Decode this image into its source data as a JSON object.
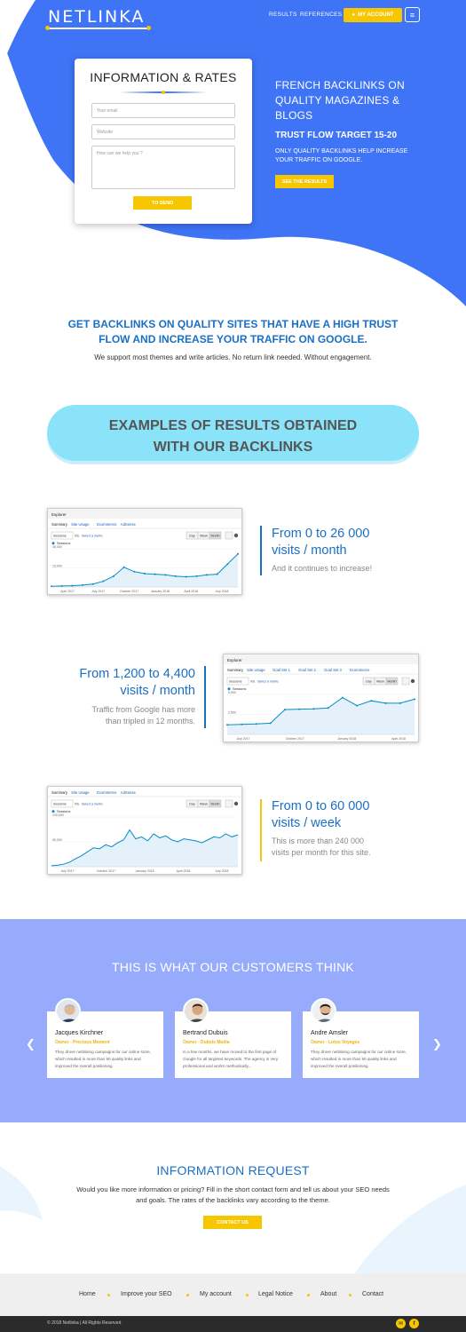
{
  "header": {
    "logo": "NETLINKA",
    "nav": [
      "RESULTS",
      "REFERENCES"
    ],
    "account_label": "MY ACCOUNT",
    "account_icon": "user-icon",
    "menu_icon": "hamburger-icon"
  },
  "form": {
    "title": "INFORMATION & RATES",
    "email_placeholder": "Your email",
    "website_placeholder": "Website",
    "message_placeholder": "How can we help you ?",
    "send_label": "TO SEND"
  },
  "hero": {
    "headline": "FRENCH BACKLINKS ON QUALITY MAGAZINES & BLOGS",
    "subheadline": "TRUST FLOW TARGET 15-20",
    "text": "ONLY QUALITY BACKLINKS HELP INCREASE YOUR TRAFFIC ON GOOGLE.",
    "cta_label": "SEE THE RESULTS"
  },
  "intro": {
    "title": "GET BACKLINKS ON QUALITY SITES THAT HAVE A HIGH TRUST FLOW AND INCREASE YOUR TRAFFIC ON GOOGLE.",
    "subtitle": "We support most themes and write articles. No return link needed. Without engagement."
  },
  "results_banner": {
    "line1": "EXAMPLES OF RESULTS OBTAINED",
    "line2": "WITH OUR BACKLINKS"
  },
  "results": [
    {
      "title_line1": "From 0 to 26 000",
      "title_line2": "visits / month",
      "subtitle": "And it continues to increase!",
      "screenshot": {
        "tab": "Explorer",
        "subtabs": [
          "Summary",
          "Site Usage",
          "Ecommerce",
          "AdSense"
        ],
        "select": "Sessions",
        "vs_label": "VS.",
        "metric_link": "Select a metric",
        "range_buttons": [
          "Day",
          "Week",
          "Month"
        ],
        "legend": "Sessions",
        "y_ticks": [
          "30,000",
          "15,000"
        ],
        "x_ticks": [
          "April 2017",
          "July 2017",
          "October 2017",
          "January 2018",
          "April 2018",
          "July 2018"
        ],
        "series": [
          0.5,
          0.8,
          1,
          1.5,
          2.3,
          4.5,
          8.5,
          15.5,
          12,
          10.5,
          10,
          9.5,
          8.5,
          8,
          8.5,
          9.5,
          10,
          18,
          26
        ]
      }
    },
    {
      "title_line1": "From 1,200 to 4,400",
      "title_line2": "visits / month",
      "subtitle_line1": "Traffic from Google has more",
      "subtitle_line2": "than tripled in 12 months.",
      "screenshot": {
        "tab": "Explorer",
        "subtabs": [
          "Summary",
          "Site Usage",
          "Goal Set 1",
          "Goal Set 2",
          "Goal Set 3",
          "Ecommerce"
        ],
        "select": "Sessions",
        "vs_label": "VS.",
        "metric_link": "Select a metric",
        "range_buttons": [
          "Day",
          "Week",
          "Month"
        ],
        "legend": "Sessions",
        "y_ticks": [
          "5,000",
          "2,500"
        ],
        "x_ticks": [
          "July 2017",
          "October 2017",
          "January 2018",
          "April 2018"
        ],
        "series": [
          1200,
          1250,
          1300,
          1400,
          3100,
          3150,
          3200,
          3300,
          4600,
          3600,
          4200,
          3900,
          3900,
          4400
        ]
      }
    },
    {
      "title_line1": "From 0 to 60 000",
      "title_line2": "visits / week",
      "subtitle_line1": "This is more than 240 000",
      "subtitle_line2": "visits per month for this site.",
      "screenshot": {
        "subtabs": [
          "Summary",
          "Site Usage",
          "Ecommerce",
          "AdSense"
        ],
        "select": "Sessions",
        "vs_label": "VS.",
        "metric_link": "Select a metric",
        "range_buttons": [
          "Day",
          "Week",
          "Month"
        ],
        "legend": "Sessions",
        "y_ticks": [
          "100,000",
          "50,000"
        ],
        "x_ticks": [
          "July 2017",
          "October 2017",
          "January 2018",
          "April 2018",
          "July 2018"
        ],
        "series": [
          2000,
          3000,
          5000,
          9000,
          16000,
          22000,
          30000,
          38000,
          36000,
          44000,
          40000,
          48000,
          54000,
          74000,
          56000,
          60000,
          52000,
          66000,
          58000,
          62000,
          54000,
          50000,
          56000,
          54000,
          52000,
          48000,
          54000,
          60000,
          58000,
          66000,
          60000,
          64000
        ]
      }
    }
  ],
  "testimonials": {
    "title": "THIS IS WHAT OUR CUSTOMERS THINK",
    "prev_icon": "chevron-left-icon",
    "next_icon": "chevron-right-icon",
    "items": [
      {
        "name": "Jacques Kirchner",
        "role": "Owner - Precious Moment",
        "text": "They drove netlinking campaigns for our online store, which resulted in more than 50 quality links and improved the overall positioning"
      },
      {
        "name": "Bertrand Dubuis",
        "role": "Owner - Dubuis Media",
        "text": "In a few months, we have moved to the first page of Google for all targeted keywords. The agency is very professional and works methodically..."
      },
      {
        "name": "Andre Amsler",
        "role": "Owner - Lotus Voyages",
        "text": "They drove netlinking campaigns for our online store, which resulted in more than 50 quality links and improved the overall positioning"
      }
    ]
  },
  "info_request": {
    "title": "INFORMATION REQUEST",
    "text": "Would you like more information or pricing? Fill in the short contact form and tell us about your SEO needs and goals. The rates of the backlinks vary according to the theme.",
    "cta_label": "CONTACT US"
  },
  "footer": {
    "links": [
      "Home",
      "Improve your SEO",
      "My account",
      "Legal Notice",
      "About",
      "Contact"
    ],
    "copyright": "© 2018 Netlinka | All Rights Reserved",
    "social": [
      {
        "icon": "email-icon",
        "glyph": "✉"
      },
      {
        "icon": "facebook-icon",
        "glyph": "f"
      }
    ]
  },
  "colors": {
    "primary_blue": "#3f74f6",
    "accent_yellow": "#f6c700",
    "title_blue": "#1a6fc4",
    "banner_cyan": "#8ae3f9",
    "testimonial_bg": "#97abfc"
  }
}
